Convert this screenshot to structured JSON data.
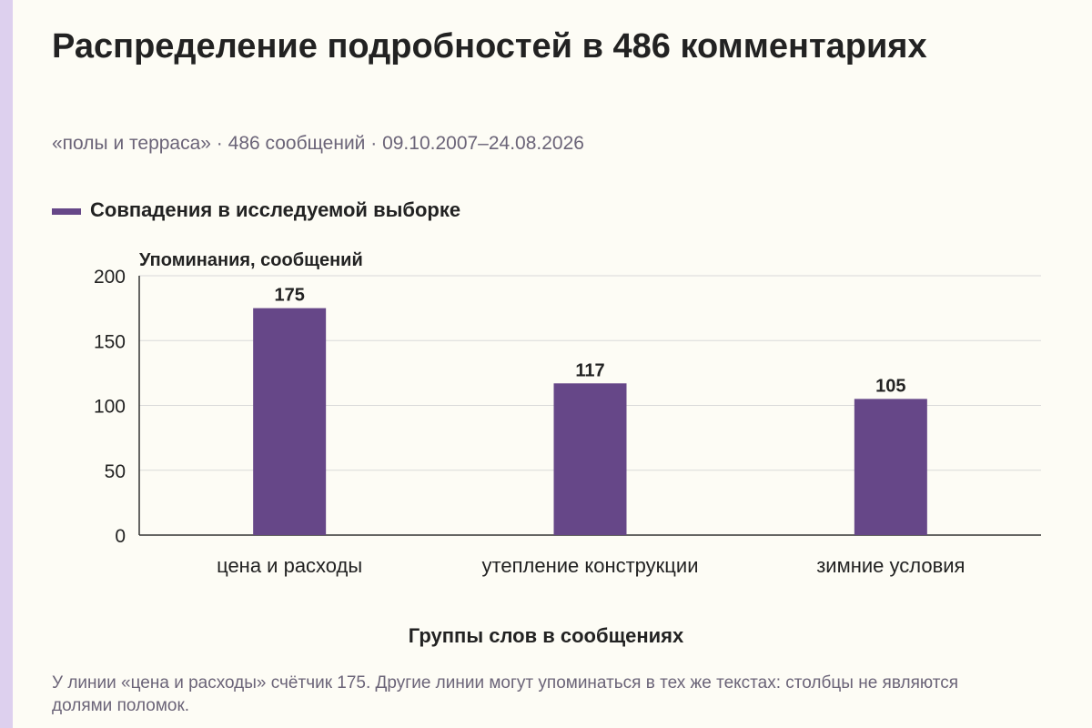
{
  "header": {
    "title": "Распределение подробностей в 486 комментариях",
    "subtitle": "«полы и терраса» · 486 сообщений · 09.10.2007–24.08.2026"
  },
  "footnote": "У линии «цена и расходы» счётчик 175. Другие линии могут упоминаться в тех же текстах: столбцы не являются долями поломок.",
  "colors": {
    "bar": "#664788",
    "grid": "#d9d9d9",
    "axis": "#333333",
    "text": "#222222",
    "muted": "#6b6478"
  },
  "chart_data": {
    "type": "bar",
    "categories": [
      "цена и расходы",
      "утепление конструкции",
      "зимние условия"
    ],
    "series": [
      {
        "name": "Совпадения в исследуемой выборке",
        "values": [
          175,
          117,
          105
        ]
      }
    ],
    "xlabel": "Группы слов в сообщениях",
    "ylabel": "Упоминания, сообщений",
    "ylim": [
      0,
      200
    ],
    "yticks": [
      0,
      50,
      100,
      150,
      200
    ],
    "grid": true,
    "legend": "top-left",
    "data_labels": true
  }
}
